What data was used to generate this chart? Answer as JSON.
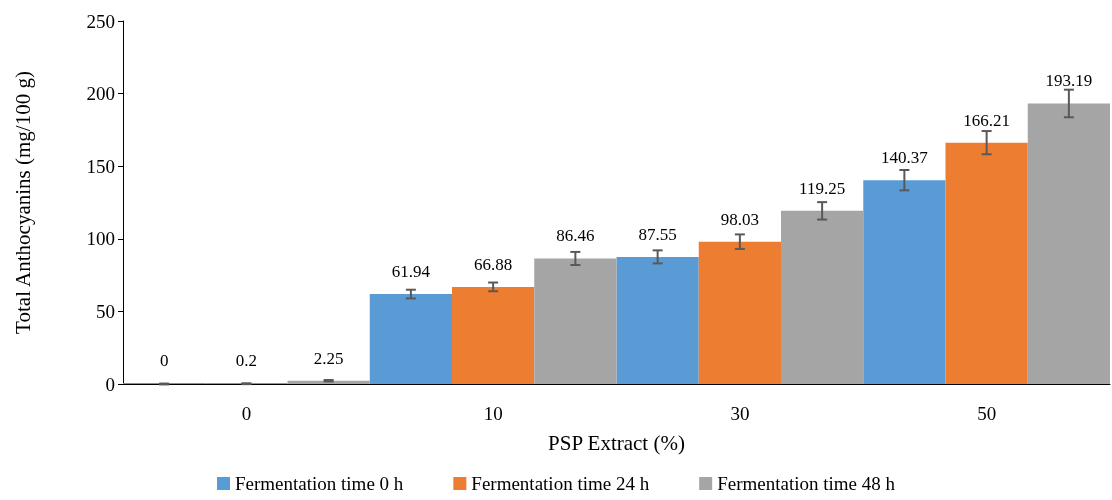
{
  "chart_data": {
    "type": "bar",
    "xlabel": "PSP Extract (%)",
    "ylabel": "Total Anthocyanins (mg/100 g)",
    "categories": [
      "0",
      "10",
      "30",
      "50"
    ],
    "series": [
      {
        "name": "Fermentation time 0 h",
        "color": "#5b9bd5",
        "values": [
          0,
          61.94,
          87.55,
          140.37
        ],
        "errors": [
          0.3,
          3,
          4.5,
          7
        ]
      },
      {
        "name": "Fermentation time 24 h",
        "color": "#ed7d31",
        "values": [
          0.2,
          66.88,
          98.03,
          166.21
        ],
        "errors": [
          0.3,
          3,
          5,
          8
        ]
      },
      {
        "name": "Fermentation time 48 h",
        "color": "#a5a5a5",
        "values": [
          2.25,
          86.46,
          119.25,
          193.19
        ],
        "errors": [
          0.5,
          4.5,
          6,
          9.5
        ]
      }
    ],
    "ylim": [
      0,
      250
    ],
    "yticks": [
      0,
      50,
      100,
      150,
      200,
      250
    ],
    "grid": false,
    "legend": "bottom",
    "data_labels": true
  }
}
